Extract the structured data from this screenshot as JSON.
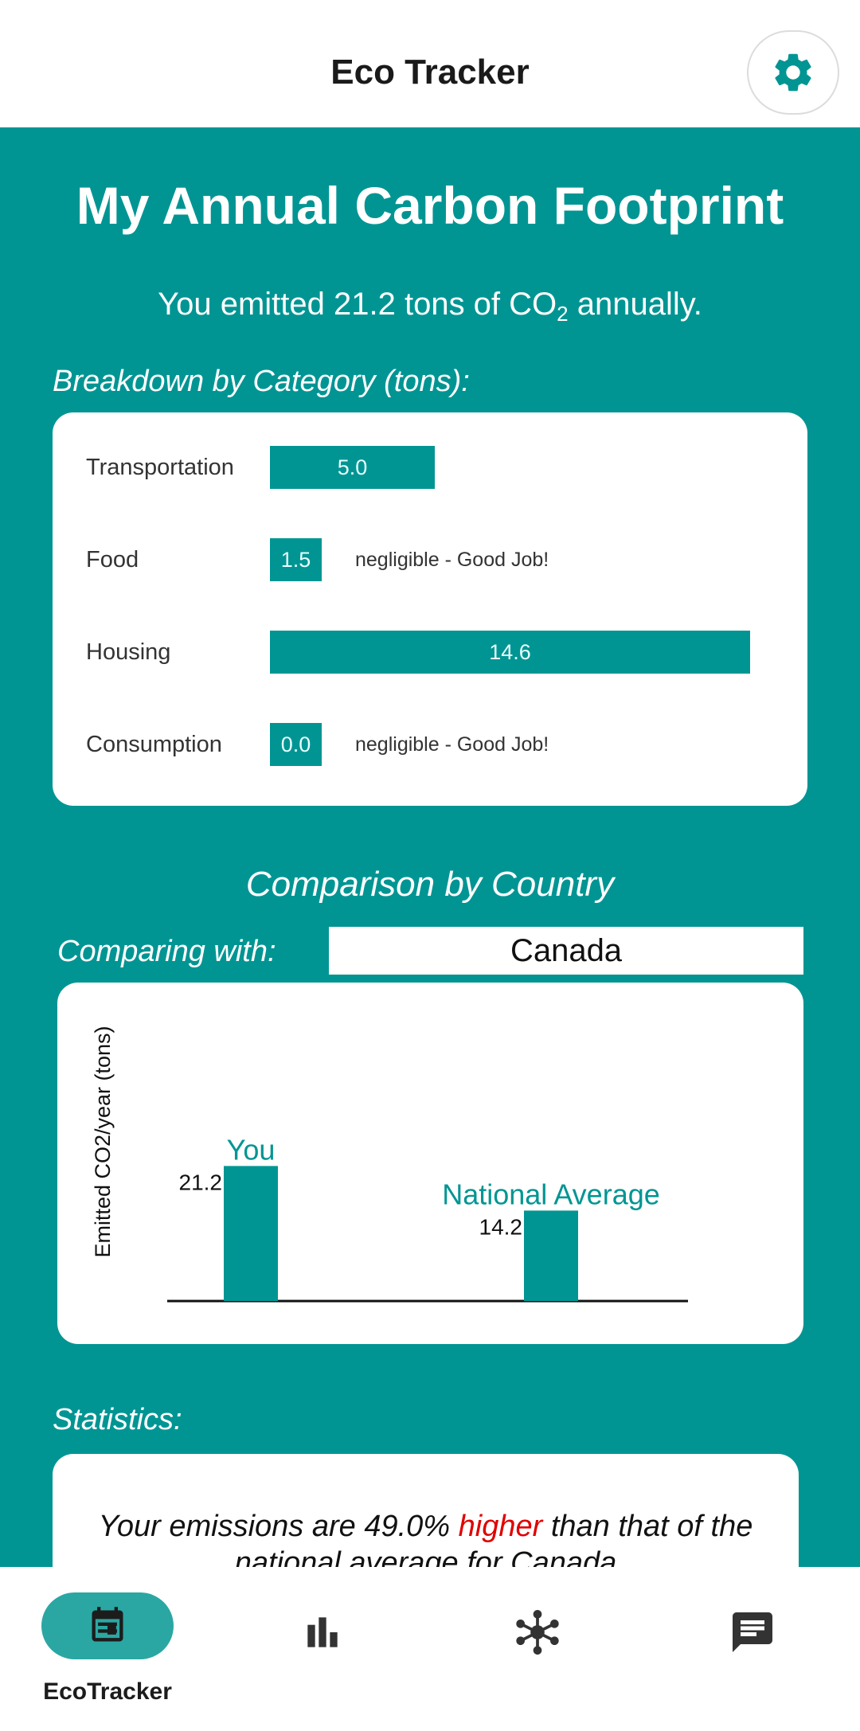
{
  "app": {
    "title": "Eco Tracker"
  },
  "header": {
    "heading": "My Annual Carbon Footprint",
    "summary_prefix": "You emitted 21.2 tons of CO",
    "summary_sub": "2",
    "summary_suffix": " annually."
  },
  "breakdown": {
    "label": "Breakdown by Category (tons):",
    "items": [
      {
        "name": "Transportation",
        "value_label": "5.0",
        "value": 5.0,
        "note": ""
      },
      {
        "name": "Food",
        "value_label": "1.5",
        "value": 1.5,
        "note": "negligible - Good Job!"
      },
      {
        "name": "Housing",
        "value_label": "14.6",
        "value": 14.6,
        "note": ""
      },
      {
        "name": "Consumption",
        "value_label": "0.0",
        "value": 0.0,
        "note": "negligible - Good Job!"
      }
    ]
  },
  "comparison": {
    "title": "Comparison by Country",
    "comparing_label": "Comparing with:",
    "selected_country": "Canada"
  },
  "chart_data": {
    "type": "bar",
    "categories": [
      "You",
      "National Average"
    ],
    "values": [
      21.2,
      14.2
    ],
    "value_labels": [
      "21.2",
      "14.2"
    ],
    "title": "",
    "xlabel": "",
    "ylabel": "Emitted CO2/year (tons)",
    "colors": [
      "#009593",
      "#009593"
    ]
  },
  "statistics": {
    "label": "Statistics:",
    "text_prefix": "Your emissions are 49.0% ",
    "text_highlight": "higher",
    "text_suffix": " than that of the national average for Canada",
    "highlight_color": "#e00000"
  },
  "bottom_nav": {
    "active_label": "EcoTracker",
    "items": [
      {
        "icon": "calendar-icon"
      },
      {
        "icon": "bar-chart-icon"
      },
      {
        "icon": "network-icon"
      },
      {
        "icon": "chat-icon"
      }
    ]
  },
  "colors": {
    "accent": "#009593",
    "nav_pill": "#2aa7a3"
  }
}
